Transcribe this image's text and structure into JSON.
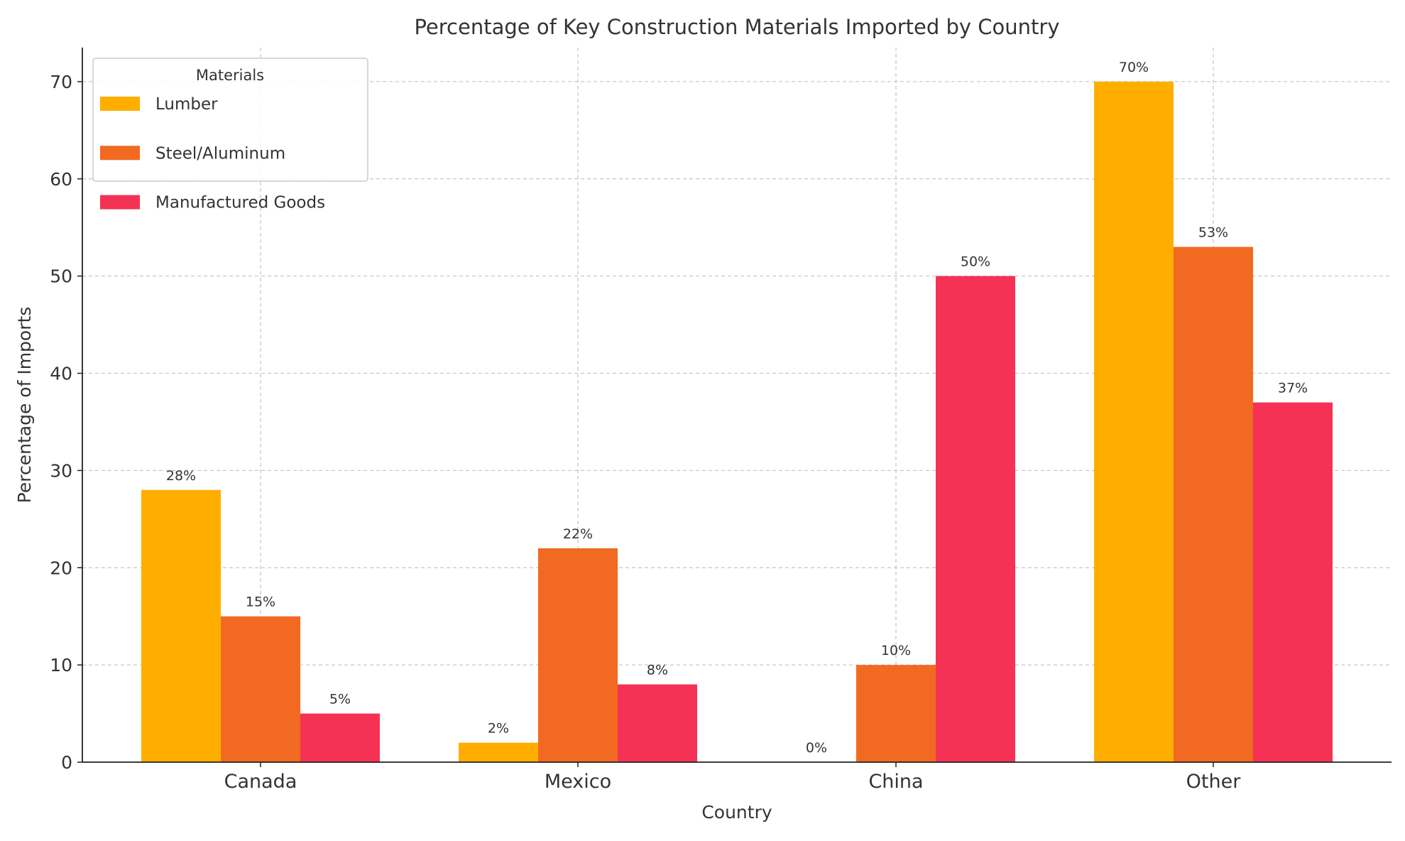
{
  "chart_data": {
    "type": "bar",
    "title": "Percentage of Key Construction Materials Imported by Country",
    "xlabel": "Country",
    "ylabel": "Percentage of Imports",
    "categories": [
      "Canada",
      "Mexico",
      "China",
      "Other"
    ],
    "series": [
      {
        "name": "Lumber",
        "values": [
          28,
          2,
          0,
          70
        ],
        "color": "#FFAE00"
      },
      {
        "name": "Steel/Aluminum",
        "values": [
          15,
          22,
          10,
          53
        ],
        "color": "#F26922"
      },
      {
        "name": "Manufactured Goods",
        "values": [
          5,
          8,
          50,
          37
        ],
        "color": "#F53255"
      }
    ],
    "data_label_suffix": "%",
    "ylim": [
      0,
      73.5
    ],
    "yticks": [
      0,
      10,
      20,
      30,
      40,
      50,
      60,
      70
    ],
    "grid": true,
    "legend": {
      "title": "Materials",
      "position": "top-left"
    }
  }
}
